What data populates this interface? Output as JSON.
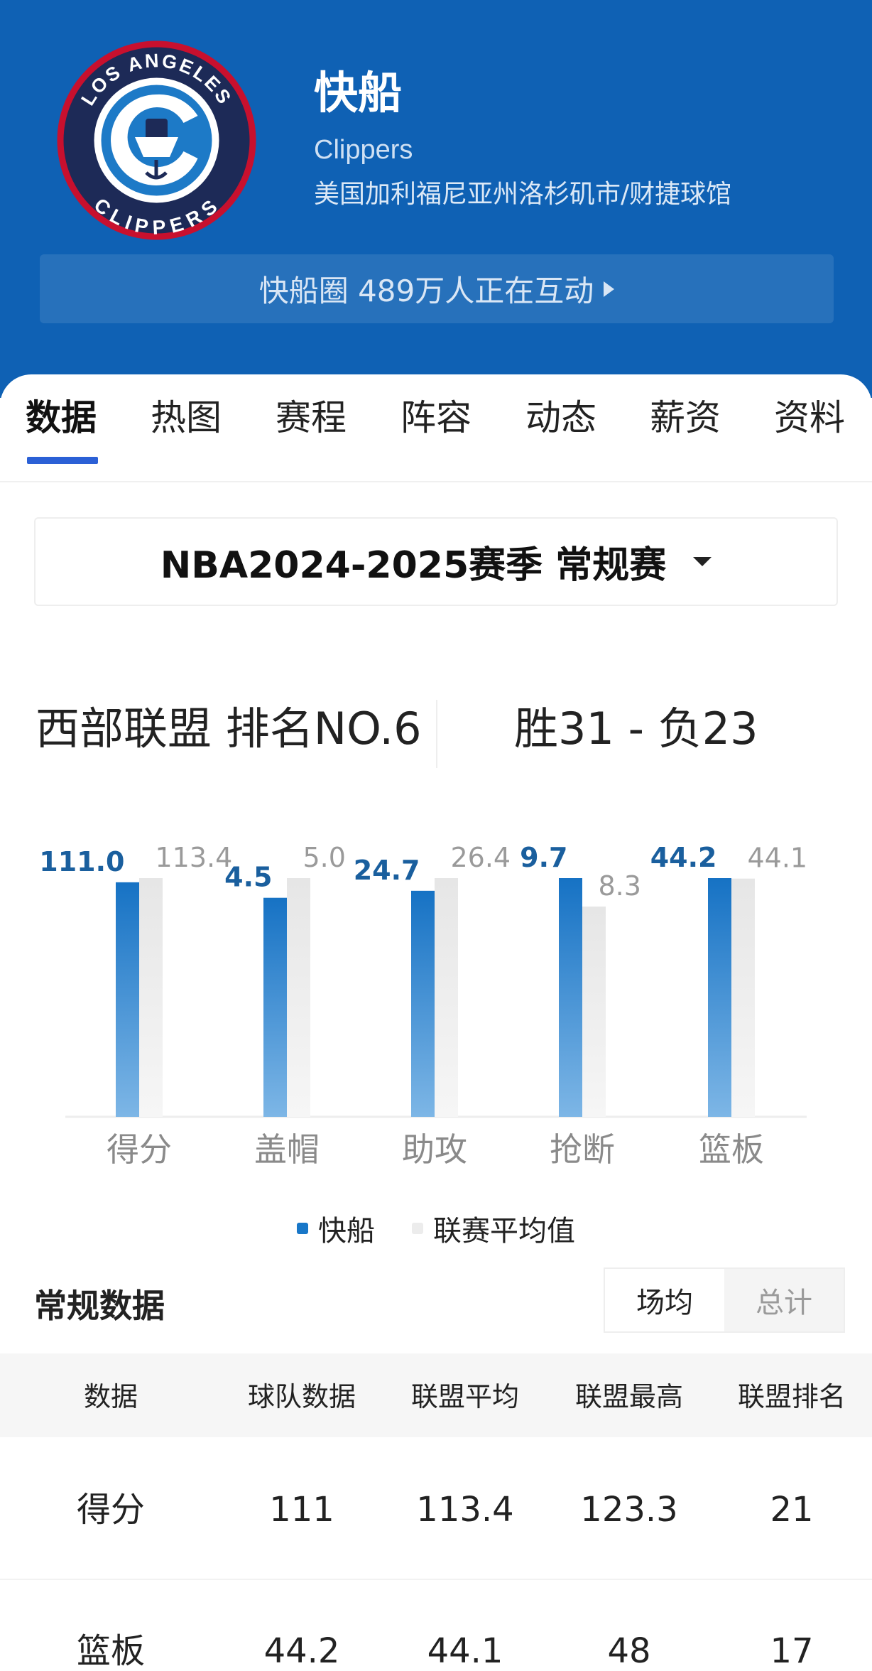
{
  "header": {
    "team_name": "快船",
    "team_en": "Clippers",
    "location": "美国加利福尼亚州洛杉矶市/财捷球馆",
    "logo_text_top": "LOS ANGELES",
    "logo_text_bottom": "CLIPPERS",
    "community": "快船圈 489万人正在互动"
  },
  "tabs": [
    {
      "label": "数据",
      "active": true
    },
    {
      "label": "热图"
    },
    {
      "label": "赛程"
    },
    {
      "label": "阵容"
    },
    {
      "label": "动态"
    },
    {
      "label": "薪资"
    },
    {
      "label": "资料"
    }
  ],
  "season": {
    "label": "NBA2024-2025赛季 常规赛"
  },
  "standing": {
    "conference": "西部联盟 排名NO.6",
    "record": "胜31 - 负23"
  },
  "colors": {
    "brand": "#0f61b4",
    "team_bar": "#1877c8",
    "avg_bar": "#e9e9e9",
    "tab_active": "#2b60d6"
  },
  "chart_data": {
    "type": "bar",
    "categories": [
      "得分",
      "盖帽",
      "助攻",
      "抢断",
      "篮板"
    ],
    "series": [
      {
        "name": "快船",
        "values": [
          111.0,
          4.5,
          24.7,
          9.7,
          44.2
        ],
        "labels": [
          "111.0",
          "4.5",
          "24.7",
          "9.7",
          "44.2"
        ]
      },
      {
        "name": "联赛平均值",
        "values": [
          113.4,
          5.0,
          26.4,
          8.3,
          44.1
        ],
        "labels": [
          "113.4",
          "5.0",
          "26.4",
          "8.3",
          "44.1"
        ]
      }
    ],
    "legend": "bottom",
    "grid": false
  },
  "stats": {
    "title": "常规数据",
    "toggle": [
      "场均",
      "总计"
    ],
    "columns": [
      "数据",
      "球队数据",
      "联盟平均",
      "联盟最高",
      "联盟排名"
    ],
    "rows": [
      [
        "得分",
        "111",
        "113.4",
        "123.3",
        "21"
      ],
      [
        "篮板",
        "44.2",
        "44.1",
        "48",
        "17"
      ]
    ]
  }
}
